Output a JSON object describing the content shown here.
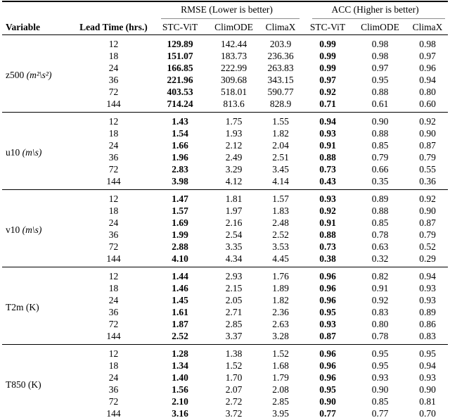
{
  "colors": {
    "background": "#ffffff",
    "text": "#000000",
    "rule": "#000000",
    "cmidrule": "#8c8c8c"
  },
  "table": {
    "headers": {
      "variable": "Variable",
      "lead_time": "Lead Time (hrs.)",
      "groups": [
        {
          "label": "RMSE (Lower is better)"
        },
        {
          "label": "ACC (Higher is better)"
        }
      ],
      "models": [
        "STC-ViT",
        "ClimODE",
        "ClimaX"
      ]
    },
    "blocks": [
      {
        "variable": "z500",
        "unit": "(m²\\s²)",
        "unit_italic": true,
        "rows": [
          {
            "lead": "12",
            "rmse": [
              "129.89",
              "142.44",
              "203.9"
            ],
            "acc": [
              "0.99",
              "0.98",
              "0.98"
            ]
          },
          {
            "lead": "18",
            "rmse": [
              "151.07",
              "183.73",
              "236.36"
            ],
            "acc": [
              "0.99",
              "0.98",
              "0.97"
            ]
          },
          {
            "lead": "24",
            "rmse": [
              "166.85",
              "222.99",
              "263.83"
            ],
            "acc": [
              "0.99",
              "0.97",
              "0.96"
            ]
          },
          {
            "lead": "36",
            "rmse": [
              "221.96",
              "309.68",
              "343.15"
            ],
            "acc": [
              "0.97",
              "0.95",
              "0.94"
            ]
          },
          {
            "lead": "72",
            "rmse": [
              "403.53",
              "518.01",
              "590.77"
            ],
            "acc": [
              "0.92",
              "0.88",
              "0.80"
            ]
          },
          {
            "lead": "144",
            "rmse": [
              "714.24",
              "813.6",
              "828.9"
            ],
            "acc": [
              "0.71",
              "0.61",
              "0.60"
            ]
          }
        ]
      },
      {
        "variable": "u10",
        "unit": "(m\\s)",
        "unit_italic": true,
        "rows": [
          {
            "lead": "12",
            "rmse": [
              "1.43",
              "1.75",
              "1.55"
            ],
            "acc": [
              "0.94",
              "0.90",
              "0.92"
            ]
          },
          {
            "lead": "18",
            "rmse": [
              "1.54",
              "1.93",
              "1.82"
            ],
            "acc": [
              "0.93",
              "0.88",
              "0.90"
            ]
          },
          {
            "lead": "24",
            "rmse": [
              "1.66",
              "2.12",
              "2.04"
            ],
            "acc": [
              "0.91",
              "0.85",
              "0.87"
            ]
          },
          {
            "lead": "36",
            "rmse": [
              "1.96",
              "2.49",
              "2.51"
            ],
            "acc": [
              "0.88",
              "0.79",
              "0.79"
            ]
          },
          {
            "lead": "72",
            "rmse": [
              "2.83",
              "3.29",
              "3.45"
            ],
            "acc": [
              "0.73",
              "0.66",
              "0.55"
            ]
          },
          {
            "lead": "144",
            "rmse": [
              "3.98",
              "4.12",
              "4.14"
            ],
            "acc": [
              "0.43",
              "0.35",
              "0.36"
            ]
          }
        ]
      },
      {
        "variable": "v10",
        "unit": "(m\\s)",
        "unit_italic": true,
        "rows": [
          {
            "lead": "12",
            "rmse": [
              "1.47",
              "1.81",
              "1.57"
            ],
            "acc": [
              "0.93",
              "0.89",
              "0.92"
            ]
          },
          {
            "lead": "18",
            "rmse": [
              "1.57",
              "1.97",
              "1.83"
            ],
            "acc": [
              "0.92",
              "0.88",
              "0.90"
            ]
          },
          {
            "lead": "24",
            "rmse": [
              "1.69",
              "2.16",
              "2.48"
            ],
            "acc": [
              "0.91",
              "0.85",
              "0.87"
            ]
          },
          {
            "lead": "36",
            "rmse": [
              "1.99",
              "2.54",
              "2.52"
            ],
            "acc": [
              "0.88",
              "0.78",
              "0.79"
            ]
          },
          {
            "lead": "72",
            "rmse": [
              "2.88",
              "3.35",
              "3.53"
            ],
            "acc": [
              "0.73",
              "0.63",
              "0.52"
            ]
          },
          {
            "lead": "144",
            "rmse": [
              "4.10",
              "4.34",
              "4.45"
            ],
            "acc": [
              "0.38",
              "0.32",
              "0.29"
            ]
          }
        ]
      },
      {
        "variable": "T2m",
        "unit": "(K)",
        "unit_italic": false,
        "rows": [
          {
            "lead": "12",
            "rmse": [
              "1.44",
              "2.93",
              "1.76"
            ],
            "acc": [
              "0.96",
              "0.82",
              "0.94"
            ]
          },
          {
            "lead": "18",
            "rmse": [
              "1.46",
              "2.15",
              "1.89"
            ],
            "acc": [
              "0.96",
              "0.91",
              "0.93"
            ]
          },
          {
            "lead": "24",
            "rmse": [
              "1.45",
              "2.05",
              "1.82"
            ],
            "acc": [
              "0.96",
              "0.92",
              "0.93"
            ]
          },
          {
            "lead": "36",
            "rmse": [
              "1.61",
              "2.71",
              "2.36"
            ],
            "acc": [
              "0.95",
              "0.83",
              "0.89"
            ]
          },
          {
            "lead": "72",
            "rmse": [
              "1.87",
              "2.85",
              "2.63"
            ],
            "acc": [
              "0.93",
              "0.80",
              "0.86"
            ]
          },
          {
            "lead": "144",
            "rmse": [
              "2.52",
              "3.37",
              "3.28"
            ],
            "acc": [
              "0.87",
              "0.78",
              "0.83"
            ]
          }
        ]
      },
      {
        "variable": "T850",
        "unit": "(K)",
        "unit_italic": false,
        "rows": [
          {
            "lead": "12",
            "rmse": [
              "1.28",
              "1.38",
              "1.52"
            ],
            "acc": [
              "0.96",
              "0.95",
              "0.95"
            ]
          },
          {
            "lead": "18",
            "rmse": [
              "1.34",
              "1.52",
              "1.68"
            ],
            "acc": [
              "0.96",
              "0.95",
              "0.94"
            ]
          },
          {
            "lead": "24",
            "rmse": [
              "1.40",
              "1.70",
              "1.79"
            ],
            "acc": [
              "0.96",
              "0.93",
              "0.93"
            ]
          },
          {
            "lead": "36",
            "rmse": [
              "1.56",
              "2.07",
              "2.08"
            ],
            "acc": [
              "0.95",
              "0.90",
              "0.90"
            ]
          },
          {
            "lead": "72",
            "rmse": [
              "2.10",
              "2.72",
              "2.85"
            ],
            "acc": [
              "0.90",
              "0.85",
              "0.81"
            ]
          },
          {
            "lead": "144",
            "rmse": [
              "3.16",
              "3.72",
              "3.95"
            ],
            "acc": [
              "0.77",
              "0.77",
              "0.70"
            ]
          }
        ]
      }
    ]
  }
}
